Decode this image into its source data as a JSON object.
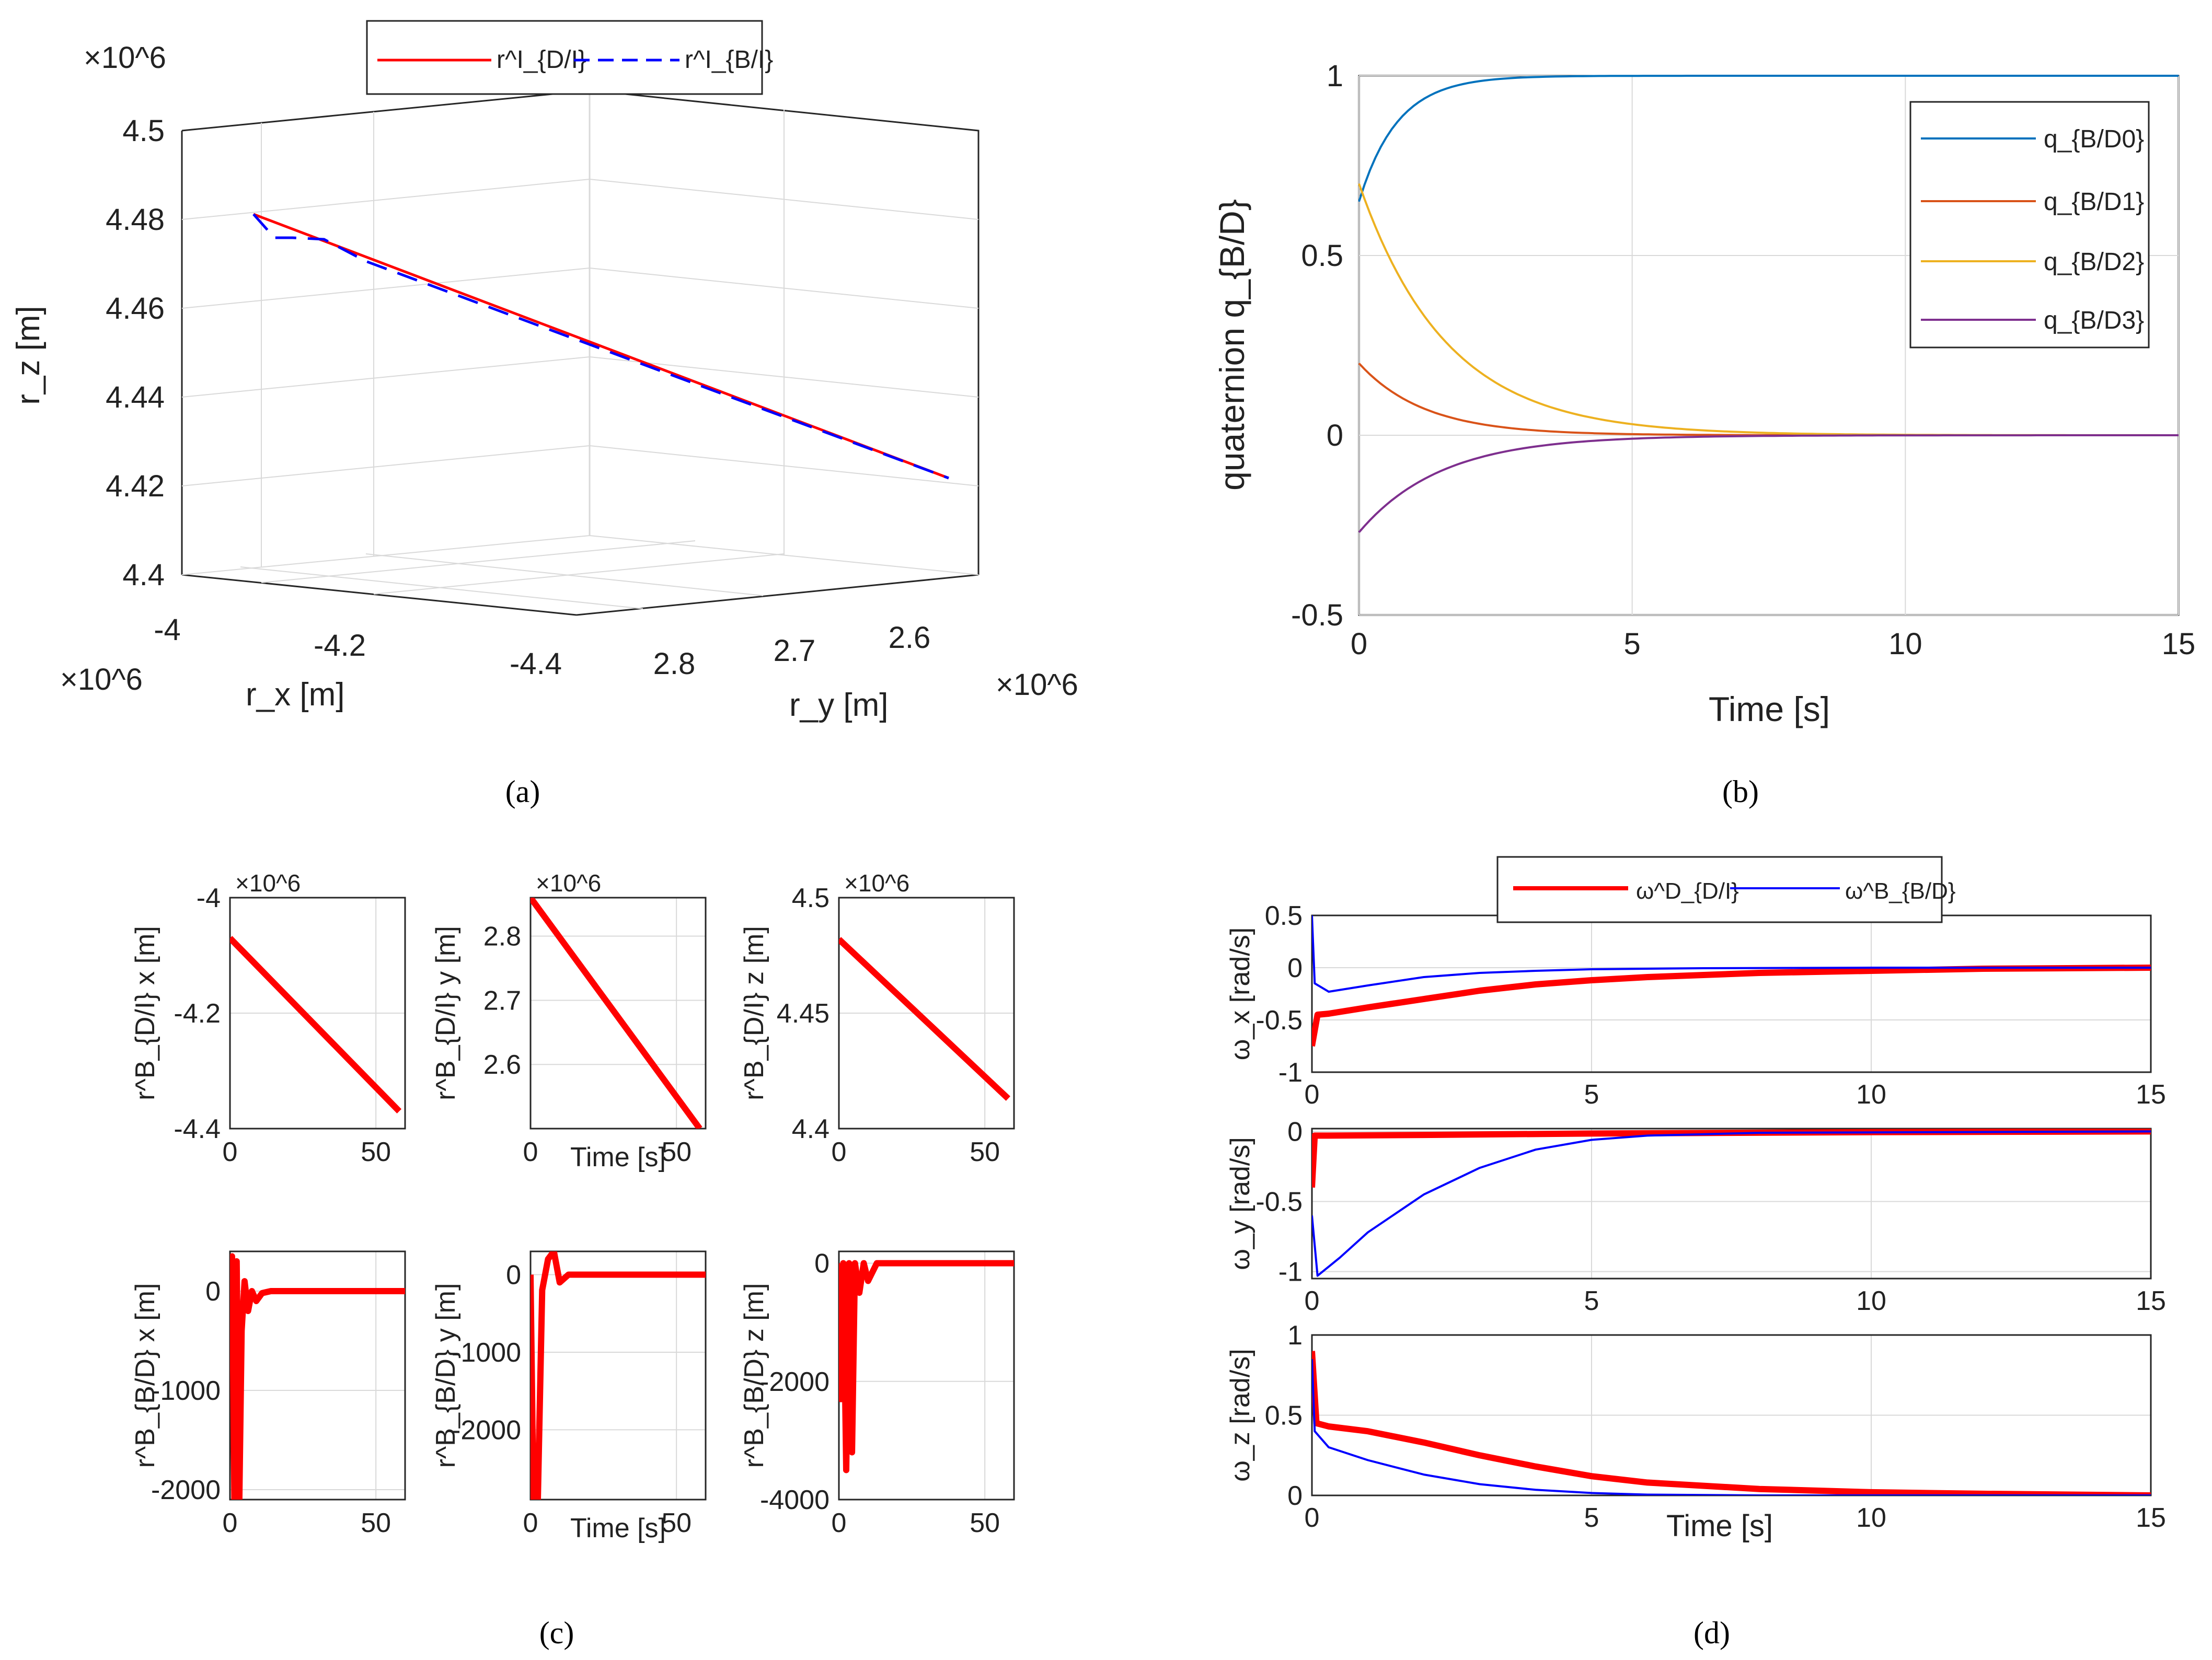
{
  "captions": {
    "a": "(a)",
    "b": "(b)",
    "c": "(c)",
    "d": "(d)"
  },
  "colors": {
    "red": "#ff0000",
    "blue": "#0000ff",
    "q0": "#0072bd",
    "q1": "#d95319",
    "q2": "#edb120",
    "q3": "#7e2f8e",
    "grid": "#d9d9d9",
    "axis": "#262626"
  },
  "chart_data": [
    {
      "id": "a",
      "type": "line3d",
      "title": "",
      "exp_label": "×10^6",
      "xlabel": "r_x [m]",
      "ylabel": "r_y [m]",
      "zlabel": "r_z [m]",
      "z_ticks": [
        "4.5",
        "4.48",
        "4.46",
        "4.44",
        "4.42",
        "4.4"
      ],
      "x_ticks": [
        "-4",
        "-4.2",
        "-4.4"
      ],
      "y_ticks": [
        "2.8",
        "2.7",
        "2.6"
      ],
      "legend": [
        "r^I_{D/I}",
        "r^I_{B/I}"
      ],
      "series": [
        {
          "name": "r^I_{D/I}",
          "style": "solid",
          "color": "red"
        },
        {
          "name": "r^I_{B/I}",
          "style": "dashed",
          "color": "blue"
        }
      ]
    },
    {
      "id": "b",
      "type": "line",
      "xlabel": "Time [s]",
      "ylabel": "quaternion q_{B/D}",
      "xlim": [
        0,
        15
      ],
      "ylim": [
        -0.5,
        1
      ],
      "x_ticks": [
        0,
        5,
        10,
        15
      ],
      "y_ticks": [
        -0.5,
        0,
        0.5,
        1
      ],
      "legend_position": "top-right",
      "series": [
        {
          "name": "q_{B/D0}",
          "initial": 0.65,
          "final": 1.0,
          "tau": 0.7,
          "color": "q0"
        },
        {
          "name": "q_{B/D1}",
          "initial": 0.2,
          "final": 0.0,
          "tau": 1.2,
          "color": "q1"
        },
        {
          "name": "q_{B/D2}",
          "initial": 0.7,
          "final": 0.0,
          "tau": 1.6,
          "color": "q2"
        },
        {
          "name": "q_{B/D3}",
          "initial": -0.27,
          "final": 0.0,
          "tau": 1.5,
          "color": "q3"
        }
      ]
    },
    {
      "id": "c",
      "type": "line",
      "subplots": [
        {
          "ylabel": "r^B_{D/I} x [m]",
          "exp_label": "×10^6",
          "xlim": [
            0,
            60
          ],
          "ylim": [
            -4.4,
            -4.0
          ],
          "x_ticks": [
            0,
            50
          ],
          "y_ticks": [
            -4,
            -4.2,
            -4.4
          ],
          "xlabel": "",
          "series": [
            {
              "x": [
                0,
                58
              ],
              "y": [
                -4.07,
                -4.37
              ]
            }
          ]
        },
        {
          "ylabel": "r^B_{D/I} y [m]",
          "exp_label": "×10^6",
          "xlim": [
            0,
            60
          ],
          "ylim": [
            2.5,
            2.86
          ],
          "x_ticks": [
            0,
            50
          ],
          "y_ticks": [
            2.8,
            2.7,
            2.6
          ],
          "xlabel": "Time [s]",
          "series": [
            {
              "x": [
                0,
                58
              ],
              "y": [
                2.86,
                2.5
              ]
            }
          ]
        },
        {
          "ylabel": "r^B_{D/I} z [m]",
          "exp_label": "×10^6",
          "xlim": [
            0,
            60
          ],
          "ylim": [
            4.4,
            4.5
          ],
          "x_ticks": [
            0,
            50
          ],
          "y_ticks": [
            4.5,
            4.45,
            4.4
          ],
          "xlabel": "",
          "series": [
            {
              "x": [
                0,
                58
              ],
              "y": [
                4.482,
                4.413
              ]
            }
          ]
        },
        {
          "ylabel": "r^B_{B/D} x [m]",
          "xlim": [
            0,
            60
          ],
          "ylim": [
            -2100,
            400
          ],
          "x_ticks": [
            0,
            50
          ],
          "y_ticks": [
            0,
            -1000,
            -2000
          ],
          "xlabel": "",
          "series": [
            {
              "x": [
                0,
                0.7,
                1.5,
                2.3,
                3.2,
                4,
                5,
                6.2,
                7.5,
                9,
                11,
                14,
                60
              ],
              "y": [
                0,
                350,
                -2100,
                300,
                -2100,
                -400,
                100,
                -200,
                0,
                -100,
                -20,
                0,
                0
              ]
            }
          ]
        },
        {
          "ylabel": "r^B_{B/D} y [m]",
          "xlim": [
            0,
            60
          ],
          "ylim": [
            -2900,
            300
          ],
          "x_ticks": [
            0,
            50
          ],
          "y_ticks": [
            0,
            -1000,
            -2000
          ],
          "xlabel": "Time [s]",
          "series": [
            {
              "x": [
                0,
                1,
                2.5,
                4,
                6,
                8,
                10,
                13,
                17,
                60
              ],
              "y": [
                0,
                -2900,
                -2900,
                -200,
                200,
                300,
                -100,
                0,
                0,
                0
              ]
            }
          ]
        },
        {
          "ylabel": "r^B_{B/D} z [m]",
          "xlim": [
            0,
            60
          ],
          "ylim": [
            -4000,
            200
          ],
          "x_ticks": [
            0,
            50
          ],
          "y_ticks": [
            0,
            -2000,
            -4000
          ],
          "xlabel": "",
          "series": [
            {
              "x": [
                0,
                0.7,
                1.5,
                2.5,
                3.5,
                4.5,
                5.5,
                7,
                8.5,
                10,
                13,
                60
              ],
              "y": [
                0,
                -2300,
                0,
                -3500,
                0,
                -3200,
                0,
                -500,
                0,
                -300,
                0,
                0
              ]
            }
          ]
        }
      ]
    },
    {
      "id": "d",
      "type": "line",
      "legend": [
        "ω^D_{D/I}",
        "ω^B_{B/D}"
      ],
      "xlabel": "Time [s]",
      "subplots": [
        {
          "ylabel": "ω_x [rad/s]",
          "xlim": [
            0,
            15
          ],
          "ylim": [
            -1,
            0.5
          ],
          "x_ticks": [
            0,
            5,
            10,
            15
          ],
          "y_ticks": [
            0.5,
            0,
            -0.5,
            -1
          ],
          "series": [
            {
              "name": "ω^D_{D/I}",
              "color": "red",
              "x": [
                0,
                0.1,
                0.3,
                1,
                2,
                3,
                4,
                5,
                6,
                8,
                10,
                12,
                15
              ],
              "y": [
                -0.75,
                -0.45,
                -0.44,
                -0.38,
                -0.3,
                -0.22,
                -0.16,
                -0.12,
                -0.09,
                -0.05,
                -0.03,
                -0.01,
                0
              ]
            },
            {
              "name": "ω^B_{B/D}",
              "color": "blue",
              "x": [
                0,
                0.05,
                0.3,
                1,
                2,
                3,
                4,
                5,
                7,
                10,
                15
              ],
              "y": [
                0.5,
                -0.15,
                -0.23,
                -0.17,
                -0.09,
                -0.05,
                -0.03,
                -0.015,
                -0.005,
                0,
                0
              ]
            }
          ]
        },
        {
          "ylabel": "ω_y [rad/s]",
          "xlim": [
            0,
            15
          ],
          "ylim": [
            -1.05,
            0.02
          ],
          "x_ticks": [
            0,
            5,
            10,
            15
          ],
          "y_ticks": [
            0,
            -0.5,
            -1
          ],
          "series": [
            {
              "name": "ω^D_{D/I}",
              "color": "red",
              "x": [
                0,
                0.05,
                0.2,
                2,
                5,
                10,
                15
              ],
              "y": [
                -0.4,
                -0.03,
                -0.03,
                -0.025,
                -0.015,
                -0.005,
                0
              ]
            },
            {
              "name": "ω^B_{B/D}",
              "color": "blue",
              "x": [
                0,
                0.1,
                0.5,
                1,
                2,
                3,
                4,
                5,
                6,
                8,
                15
              ],
              "y": [
                -0.6,
                -1.03,
                -0.9,
                -0.72,
                -0.45,
                -0.26,
                -0.13,
                -0.06,
                -0.03,
                -0.01,
                0
              ]
            }
          ]
        },
        {
          "ylabel": "ω_z [rad/s]",
          "xlim": [
            0,
            15
          ],
          "ylim": [
            0,
            1
          ],
          "x_ticks": [
            0,
            5,
            10,
            15
          ],
          "y_ticks": [
            1,
            0.5,
            0
          ],
          "series": [
            {
              "name": "ω^D_{D/I}",
              "color": "red",
              "x": [
                0,
                0.08,
                0.3,
                1,
                2,
                3,
                4,
                5,
                6,
                8,
                10,
                12,
                15
              ],
              "y": [
                0.9,
                0.45,
                0.43,
                0.4,
                0.33,
                0.25,
                0.18,
                0.12,
                0.08,
                0.04,
                0.02,
                0.01,
                0
              ]
            },
            {
              "name": "ω^B_{B/D}",
              "color": "blue",
              "x": [
                0,
                0.05,
                0.3,
                1,
                2,
                3,
                4,
                5,
                6,
                8,
                15
              ],
              "y": [
                0.85,
                0.4,
                0.3,
                0.22,
                0.13,
                0.07,
                0.035,
                0.015,
                0.005,
                0,
                0
              ]
            }
          ]
        }
      ]
    }
  ]
}
